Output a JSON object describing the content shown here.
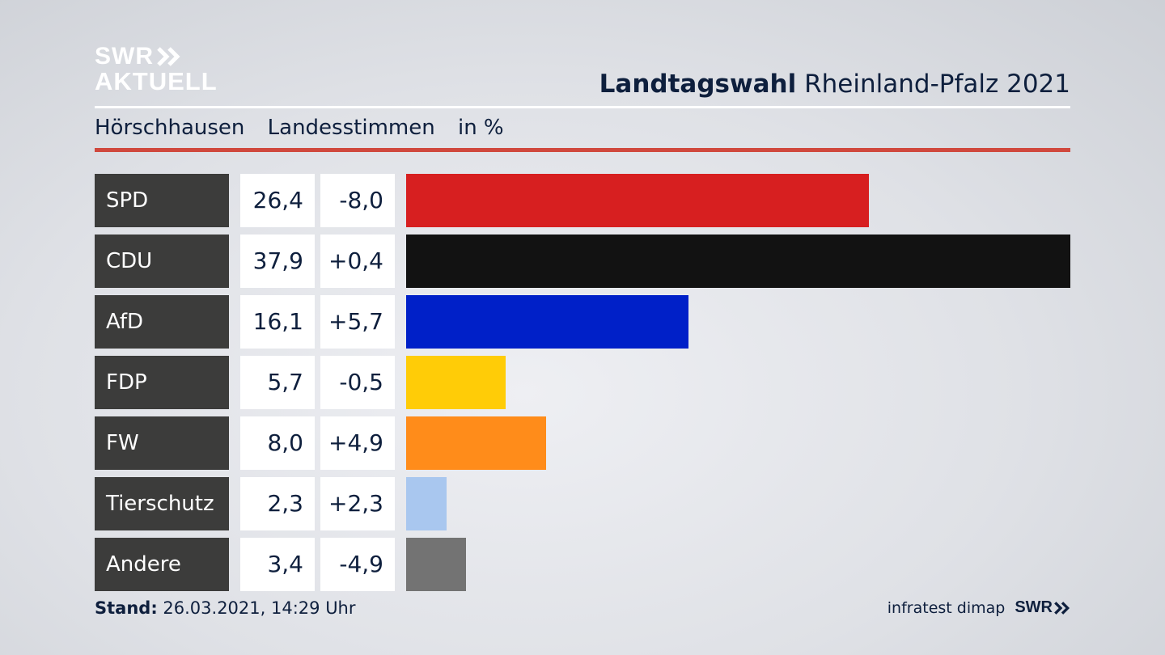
{
  "header": {
    "logo_line1": "SWR",
    "logo_line2": "AKTUELL",
    "title_bold": "Landtagswahl",
    "title_rest": "Rheinland-Pfalz 2021",
    "subtitle_place": "Hörschhausen",
    "subtitle_type": "Landesstimmen",
    "subtitle_unit": "in %"
  },
  "colors": {
    "accent_rule": "#d0483d",
    "label_bg": "#3c3c3b"
  },
  "chart_data": {
    "type": "bar",
    "orientation": "horizontal",
    "categories": [
      "SPD",
      "CDU",
      "AfD",
      "FDP",
      "FW",
      "Tierschutz",
      "Andere"
    ],
    "values": [
      26.4,
      37.9,
      16.1,
      5.7,
      8.0,
      2.3,
      3.4
    ],
    "value_labels": [
      "26,4",
      "37,9",
      "16,1",
      "5,7",
      "8,0",
      "2,3",
      "3,4"
    ],
    "diff_labels": [
      "-8,0",
      "+0,4",
      "+5,7",
      "-0,5",
      "+4,9",
      "+2,3",
      "-4,9"
    ],
    "colors": [
      "#d71f20",
      "#121212",
      "#0020c8",
      "#ffcc07",
      "#ff8c1a",
      "#a9c7ef",
      "#737373"
    ],
    "xlim": [
      0,
      37.9
    ]
  },
  "footer": {
    "stand_label": "Stand:",
    "stand_value": "26.03.2021, 14:29 Uhr",
    "source": "infratest dimap",
    "logo": "SWR"
  }
}
